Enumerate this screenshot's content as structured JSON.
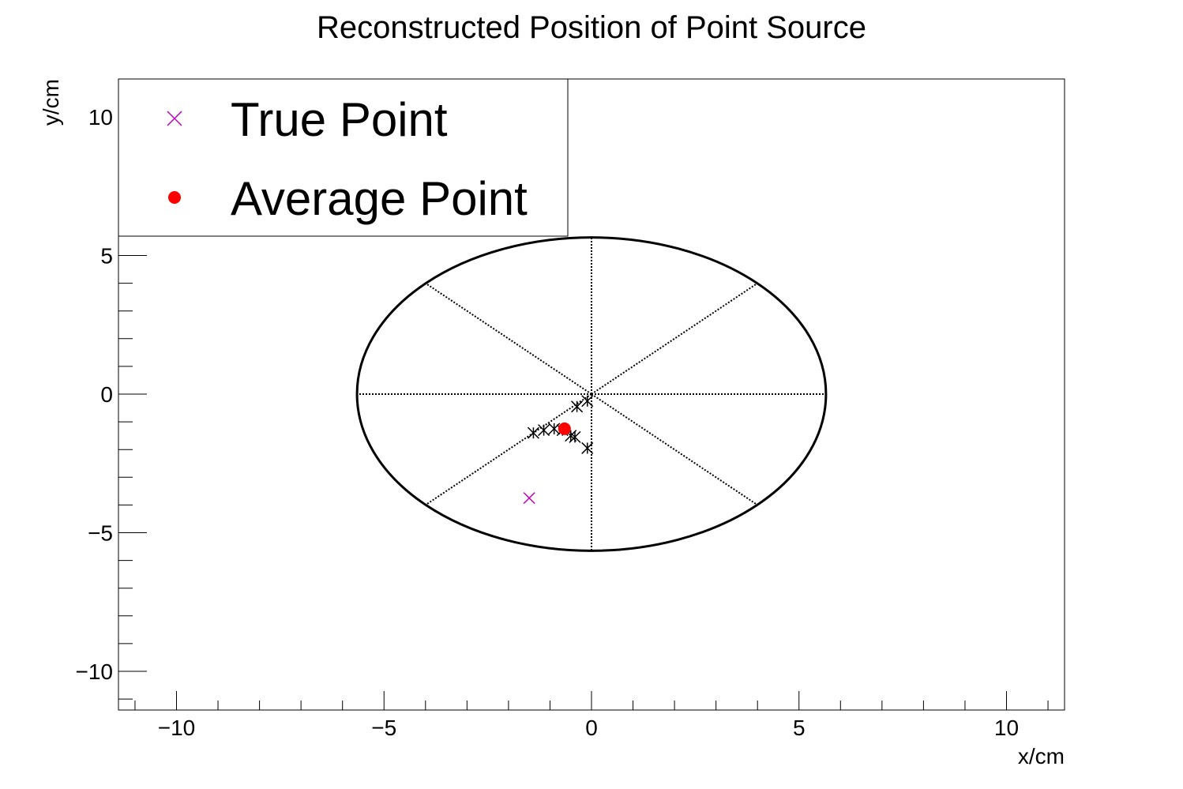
{
  "chart_data": {
    "type": "scatter",
    "title": "Reconstructed Position of Point Source",
    "xlabel": "x/cm",
    "ylabel": "y/cm",
    "xlim": [
      -11.4,
      11.4
    ],
    "ylim": [
      -11.4,
      11.4
    ],
    "x_ticks": [
      -10,
      -5,
      0,
      5,
      10
    ],
    "y_ticks": [
      -10,
      -5,
      0,
      5,
      10
    ],
    "x_tick_labels": [
      "−10",
      "−5",
      "0",
      "5",
      "10"
    ],
    "y_tick_labels": [
      "−10",
      "−5",
      "0",
      "5",
      "10"
    ],
    "grid": false,
    "legend_placement": "top-left",
    "detector": {
      "shape": "circle",
      "radius": 5.65,
      "center": [
        0,
        0
      ],
      "spoke_angles_deg": [
        0,
        45,
        90,
        135,
        180,
        225,
        270,
        315
      ]
    },
    "series": [
      {
        "name": "True Point",
        "marker": "x",
        "color": "#c000c0",
        "points": [
          [
            -1.5,
            -3.75
          ]
        ]
      },
      {
        "name": "Average Point",
        "marker": "filled-circle",
        "color": "#ff0000",
        "points": [
          [
            -0.65,
            -1.25
          ]
        ]
      },
      {
        "marker": "asterisk",
        "color": "#000000",
        "points": [
          [
            -1.4,
            -1.4
          ],
          [
            -1.15,
            -1.3
          ],
          [
            -0.9,
            -1.25
          ],
          [
            -0.7,
            -1.3
          ],
          [
            -0.5,
            -1.5
          ],
          [
            -0.4,
            -1.55
          ],
          [
            -0.35,
            -0.45
          ],
          [
            -0.1,
            -0.25
          ],
          [
            -0.1,
            -1.95
          ]
        ]
      }
    ]
  }
}
